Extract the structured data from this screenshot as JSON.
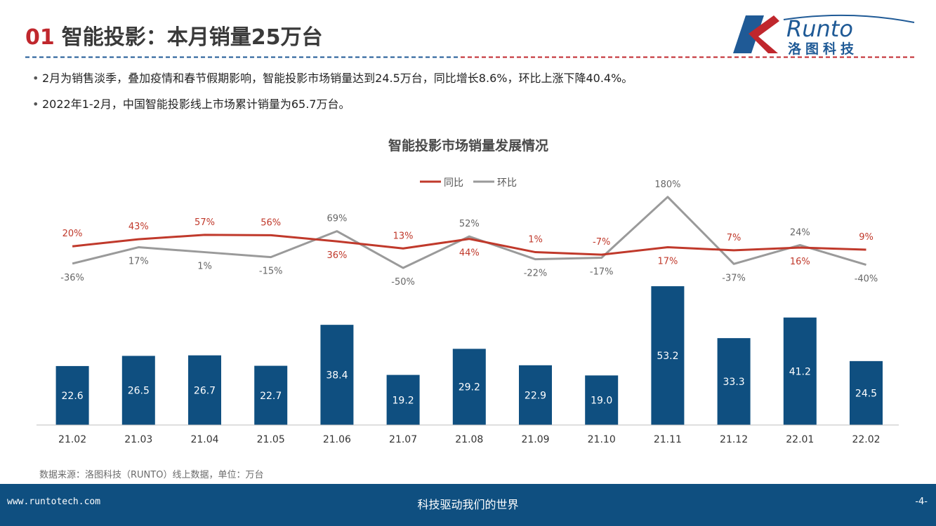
{
  "header": {
    "number": "01",
    "title": "智能投影：本月销量25万台",
    "logo_text": "Runto",
    "logo_cn": "洛图科技",
    "accent_color": "#c0272d",
    "brand_color": "#1f5a96"
  },
  "bullets": [
    "2月为销售淡季，叠加疫情和春节假期影响，智能投影市场销量达到24.5万台，同比增长8.6%，环比上涨下降40.4%。",
    "2022年1-2月，中国智能投影线上市场累计销量为65.7万台。"
  ],
  "bullet_symbol": "•",
  "chart_data": {
    "type": "bar",
    "title": "智能投影市场销量发展情况",
    "categories": [
      "21.02",
      "21.03",
      "21.04",
      "21.05",
      "21.06",
      "21.07",
      "21.08",
      "21.09",
      "21.10",
      "21.11",
      "21.12",
      "22.01",
      "22.02"
    ],
    "bar_series": {
      "values": [
        22.6,
        26.5,
        26.7,
        22.7,
        38.4,
        19.2,
        29.2,
        22.9,
        19.0,
        53.2,
        33.3,
        41.2,
        24.5
      ],
      "color": "#0f4f80"
    },
    "bar_labels": [
      "22.6",
      "26.5",
      "26.7",
      "22.7",
      "38.4",
      "19.2",
      "29.2",
      "22.9",
      "19.0",
      "53.2",
      "33.3",
      "41.2",
      "24.5"
    ],
    "line_series": [
      {
        "name": "同比",
        "color": "#c0392b",
        "values": [
          20,
          43,
          57,
          56,
          36,
          13,
          44,
          1,
          -7,
          17,
          7,
          16,
          9
        ],
        "labels": [
          "20%",
          "43%",
          "57%",
          "56%",
          "36%",
          "13%",
          "44%",
          "1%",
          "-7%",
          "17%",
          "7%",
          "16%",
          "9%"
        ]
      },
      {
        "name": "环比",
        "color": "#9a9a9a",
        "values": [
          -36,
          17,
          1,
          -15,
          69,
          -50,
          52,
          -22,
          -17,
          180,
          -37,
          24,
          -40
        ],
        "labels": [
          "-36%",
          "17%",
          "1%",
          "-15%",
          "69%",
          "-50%",
          "52%",
          "-22%",
          "-17%",
          "180%",
          "-37%",
          "24%",
          "-40%"
        ]
      }
    ],
    "legend_position": "top-center",
    "grid": false
  },
  "source": "数据来源：洛图科技（RUNTO）线上数据，单位：万台",
  "footer": {
    "url": "www.runtotech.com",
    "slogan": "科技驱动我们的世界",
    "page": "-4-"
  }
}
